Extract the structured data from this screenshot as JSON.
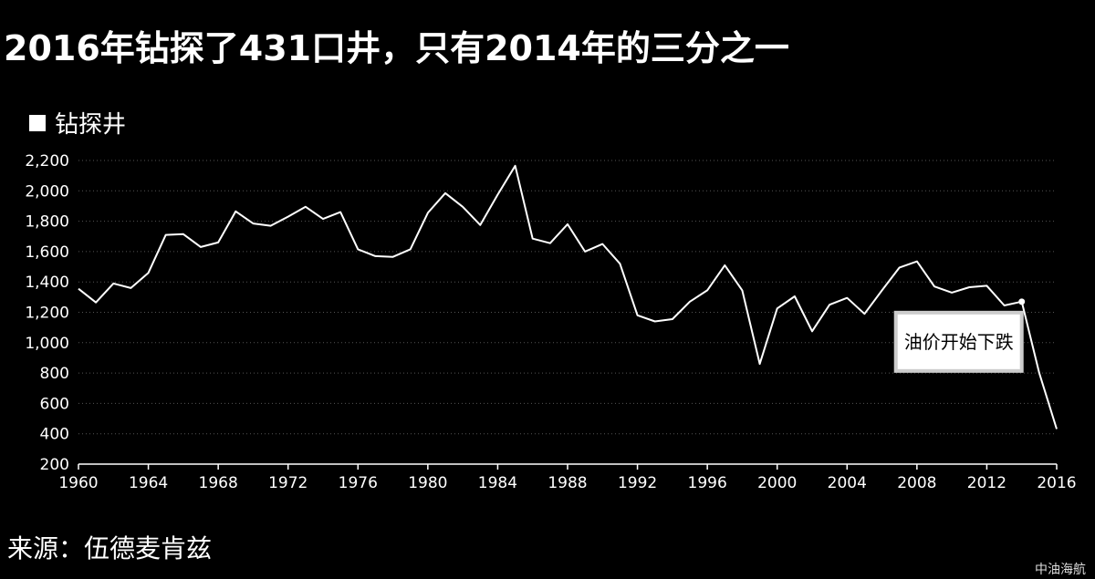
{
  "page": {
    "title": "2016年钻探了431口井，只有2014年的三分之一",
    "source": "来源：伍德麦肯兹",
    "watermark": "中油海航"
  },
  "chart_data": {
    "type": "line",
    "title": "2016年钻探了431口井，只有2014年的三分之一",
    "legend": [
      "钻探井"
    ],
    "legend_position": "top-left",
    "grid": true,
    "xlim": [
      1960,
      2016
    ],
    "ylim": [
      200,
      2200
    ],
    "x_ticks": [
      1960,
      1964,
      1968,
      1972,
      1976,
      1980,
      1984,
      1988,
      1992,
      1996,
      2000,
      2004,
      2008,
      2012,
      2016
    ],
    "y_ticks": [
      200,
      400,
      600,
      800,
      1000,
      1200,
      1400,
      1600,
      1800,
      2000,
      2200
    ],
    "y_tick_labels": [
      "200",
      "400",
      "600",
      "800",
      "1,000",
      "1,200",
      "1,400",
      "1,600",
      "1,800",
      "2,000",
      "2,200"
    ],
    "series": [
      {
        "name": "钻探井",
        "color": "#ffffff",
        "x": [
          1960,
          1961,
          1962,
          1963,
          1964,
          1965,
          1966,
          1967,
          1968,
          1969,
          1970,
          1971,
          1972,
          1973,
          1974,
          1975,
          1976,
          1977,
          1978,
          1979,
          1980,
          1981,
          1982,
          1983,
          1984,
          1985,
          1986,
          1987,
          1988,
          1989,
          1990,
          1991,
          1992,
          1993,
          1994,
          1995,
          1996,
          1997,
          1998,
          1999,
          2000,
          2001,
          2002,
          2003,
          2004,
          2005,
          2006,
          2007,
          2008,
          2009,
          2010,
          2011,
          2012,
          2013,
          2014,
          2015,
          2016
        ],
        "y": [
          1355,
          1265,
          1390,
          1360,
          1460,
          1710,
          1715,
          1630,
          1660,
          1865,
          1785,
          1770,
          1830,
          1895,
          1815,
          1860,
          1615,
          1570,
          1565,
          1615,
          1855,
          1985,
          1895,
          1775,
          1975,
          2165,
          1685,
          1655,
          1780,
          1600,
          1650,
          1520,
          1180,
          1140,
          1155,
          1270,
          1345,
          1510,
          1345,
          860,
          1225,
          1305,
          1075,
          1250,
          1295,
          1190,
          1345,
          1495,
          1535,
          1370,
          1330,
          1365,
          1375,
          1245,
          1270,
          800,
          431
        ]
      }
    ],
    "annotations": [
      {
        "text": "油价开始下跌",
        "x": 2014,
        "y": 1270
      }
    ]
  }
}
